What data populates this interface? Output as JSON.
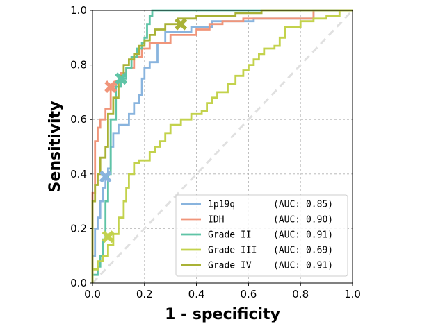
{
  "chart_data": {
    "type": "line",
    "title": "",
    "xlabel": "1 - specificity",
    "ylabel": "Sensitivity",
    "xlim": [
      0,
      1
    ],
    "ylim": [
      0,
      1
    ],
    "xticks": [
      "0.0",
      "0.2",
      "0.4",
      "0.6",
      "0.8",
      "1.0"
    ],
    "yticks": [
      "0.0",
      "0.2",
      "0.4",
      "0.6",
      "0.8",
      "1.0"
    ],
    "grid": true,
    "legend_position": "lower-right",
    "diagonal": {
      "x": [
        0,
        1
      ],
      "y": [
        0,
        1
      ],
      "color": "#e0e0e0",
      "style": "dashed"
    },
    "series": [
      {
        "name": "1p19q",
        "auc_label": "(AUC: 0.85)",
        "color": "#89b4de",
        "x": [
          0,
          0,
          0.01,
          0.01,
          0.02,
          0.02,
          0.03,
          0.03,
          0.04,
          0.04,
          0.05,
          0.05,
          0.06,
          0.06,
          0.07,
          0.07,
          0.08,
          0.08,
          0.1,
          0.1,
          0.14,
          0.14,
          0.16,
          0.16,
          0.18,
          0.18,
          0.19,
          0.19,
          0.2,
          0.2,
          0.22,
          0.22,
          0.25,
          0.25,
          0.28,
          0.28,
          0.38,
          0.38,
          0.46,
          0.46,
          0.62,
          0.62,
          0.85,
          0.85,
          1.0
        ],
        "y": [
          0,
          0.1,
          0.1,
          0.2,
          0.2,
          0.24,
          0.24,
          0.3,
          0.3,
          0.35,
          0.35,
          0.38,
          0.38,
          0.42,
          0.42,
          0.5,
          0.5,
          0.55,
          0.55,
          0.58,
          0.58,
          0.62,
          0.62,
          0.66,
          0.66,
          0.69,
          0.69,
          0.75,
          0.75,
          0.79,
          0.79,
          0.81,
          0.81,
          0.88,
          0.88,
          0.92,
          0.92,
          0.94,
          0.94,
          0.96,
          0.96,
          0.97,
          0.97,
          1.0,
          1.0
        ]
      },
      {
        "name": "IDH",
        "auc_label": "(AUC: 0.90)",
        "color": "#f0957a",
        "x": [
          0,
          0,
          0.01,
          0.01,
          0.02,
          0.02,
          0.03,
          0.03,
          0.05,
          0.05,
          0.07,
          0.07,
          0.09,
          0.09,
          0.11,
          0.11,
          0.13,
          0.13,
          0.16,
          0.16,
          0.19,
          0.19,
          0.22,
          0.22,
          0.3,
          0.3,
          0.4,
          0.4,
          0.45,
          0.45,
          0.5,
          0.5,
          0.58,
          0.58,
          0.85,
          0.85,
          1.0
        ],
        "y": [
          0,
          0.33,
          0.33,
          0.52,
          0.52,
          0.57,
          0.57,
          0.6,
          0.6,
          0.64,
          0.64,
          0.72,
          0.72,
          0.74,
          0.74,
          0.77,
          0.77,
          0.79,
          0.79,
          0.83,
          0.83,
          0.86,
          0.86,
          0.88,
          0.88,
          0.91,
          0.91,
          0.93,
          0.93,
          0.95,
          0.95,
          0.96,
          0.96,
          0.97,
          0.97,
          1.0,
          1.0
        ]
      },
      {
        "name": "Grade II",
        "auc_label": "(AUC: 0.91)",
        "color": "#5fc4a6",
        "x": [
          0,
          0,
          0.02,
          0.02,
          0.03,
          0.03,
          0.04,
          0.04,
          0.05,
          0.05,
          0.06,
          0.06,
          0.07,
          0.07,
          0.09,
          0.09,
          0.11,
          0.11,
          0.13,
          0.13,
          0.15,
          0.15,
          0.17,
          0.17,
          0.19,
          0.19,
          0.2,
          0.2,
          0.21,
          0.21,
          0.22,
          0.22,
          0.23,
          0.23,
          1.0
        ],
        "y": [
          0,
          0.03,
          0.03,
          0.06,
          0.06,
          0.1,
          0.1,
          0.16,
          0.16,
          0.3,
          0.3,
          0.4,
          0.4,
          0.6,
          0.6,
          0.72,
          0.72,
          0.75,
          0.75,
          0.79,
          0.79,
          0.83,
          0.83,
          0.86,
          0.86,
          0.88,
          0.88,
          0.9,
          0.9,
          0.95,
          0.95,
          0.98,
          0.98,
          1.0,
          1.0
        ]
      },
      {
        "name": "Grade III",
        "auc_label": "(AUC: 0.69)",
        "color": "#c3d24c",
        "x": [
          0,
          0,
          0.02,
          0.02,
          0.04,
          0.04,
          0.06,
          0.06,
          0.08,
          0.08,
          0.1,
          0.1,
          0.12,
          0.12,
          0.13,
          0.13,
          0.14,
          0.14,
          0.16,
          0.16,
          0.18,
          0.18,
          0.22,
          0.22,
          0.24,
          0.24,
          0.26,
          0.26,
          0.28,
          0.28,
          0.3,
          0.3,
          0.34,
          0.34,
          0.38,
          0.38,
          0.42,
          0.42,
          0.44,
          0.44,
          0.46,
          0.46,
          0.48,
          0.48,
          0.52,
          0.52,
          0.55,
          0.55,
          0.58,
          0.58,
          0.6,
          0.6,
          0.62,
          0.62,
          0.64,
          0.64,
          0.66,
          0.66,
          0.7,
          0.7,
          0.72,
          0.72,
          0.74,
          0.74,
          0.8,
          0.8,
          0.85,
          0.85,
          0.9,
          0.9,
          0.95,
          0.95,
          1.0
        ],
        "y": [
          0,
          0.05,
          0.05,
          0.08,
          0.08,
          0.1,
          0.1,
          0.14,
          0.14,
          0.18,
          0.18,
          0.24,
          0.24,
          0.3,
          0.3,
          0.35,
          0.35,
          0.4,
          0.4,
          0.44,
          0.44,
          0.45,
          0.45,
          0.48,
          0.48,
          0.5,
          0.5,
          0.52,
          0.52,
          0.55,
          0.55,
          0.58,
          0.58,
          0.6,
          0.6,
          0.62,
          0.62,
          0.63,
          0.63,
          0.66,
          0.66,
          0.68,
          0.68,
          0.7,
          0.7,
          0.73,
          0.73,
          0.76,
          0.76,
          0.78,
          0.78,
          0.8,
          0.8,
          0.82,
          0.82,
          0.84,
          0.84,
          0.86,
          0.86,
          0.87,
          0.87,
          0.9,
          0.9,
          0.94,
          0.94,
          0.96,
          0.96,
          0.97,
          0.97,
          0.98,
          0.98,
          1.0,
          1.0
        ]
      },
      {
        "name": "Grade IV",
        "auc_label": "(AUC: 0.91)",
        "color": "#a9b236",
        "x": [
          0,
          0,
          0.01,
          0.01,
          0.02,
          0.02,
          0.03,
          0.03,
          0.05,
          0.05,
          0.06,
          0.06,
          0.08,
          0.08,
          0.1,
          0.1,
          0.12,
          0.12,
          0.14,
          0.14,
          0.16,
          0.16,
          0.18,
          0.18,
          0.2,
          0.2,
          0.22,
          0.22,
          0.24,
          0.24,
          0.28,
          0.28,
          0.33,
          0.33,
          0.4,
          0.4,
          0.55,
          0.55,
          0.65,
          0.65,
          0.78,
          0.78,
          1.0
        ],
        "y": [
          0,
          0.3,
          0.3,
          0.36,
          0.36,
          0.4,
          0.4,
          0.46,
          0.46,
          0.5,
          0.5,
          0.62,
          0.62,
          0.68,
          0.68,
          0.76,
          0.76,
          0.8,
          0.8,
          0.82,
          0.82,
          0.84,
          0.84,
          0.87,
          0.87,
          0.89,
          0.89,
          0.91,
          0.91,
          0.93,
          0.93,
          0.95,
          0.95,
          0.97,
          0.97,
          0.98,
          0.98,
          0.99,
          0.99,
          1.0,
          1.0,
          1.0,
          1.0
        ]
      }
    ],
    "markers": [
      {
        "series": "1p19q",
        "x": 0.05,
        "y": 0.39,
        "color": "#89b4de"
      },
      {
        "series": "IDH",
        "x": 0.07,
        "y": 0.72,
        "color": "#f0957a"
      },
      {
        "series": "Grade II",
        "x": 0.11,
        "y": 0.75,
        "color": "#5fc4a6"
      },
      {
        "series": "Grade III",
        "x": 0.06,
        "y": 0.17,
        "color": "#c3d24c"
      },
      {
        "series": "Grade IV",
        "x": 0.34,
        "y": 0.95,
        "color": "#a9b236"
      }
    ]
  }
}
